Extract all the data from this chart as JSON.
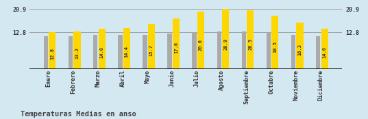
{
  "months": [
    "Enero",
    "Febrero",
    "Marzo",
    "Abril",
    "Mayo",
    "Junio",
    "Julio",
    "Agosto",
    "Septiembre",
    "Octubre",
    "Noviembre",
    "Diciembre"
  ],
  "values": [
    12.8,
    13.2,
    14.0,
    14.4,
    15.7,
    17.6,
    20.0,
    20.9,
    20.5,
    18.5,
    16.3,
    14.0
  ],
  "gray_values": [
    11.5,
    11.5,
    11.8,
    11.8,
    12.0,
    12.3,
    12.8,
    13.2,
    13.0,
    12.8,
    11.8,
    11.5
  ],
  "bar_color_yellow": "#FFD700",
  "bar_color_gray": "#AAAAAA",
  "background_color": "#D4E8F2",
  "ylim_min": 0,
  "ylim_max": 22.0,
  "yticks": [
    12.8,
    20.9
  ],
  "ytick_labels": [
    "12.8",
    "20.9"
  ],
  "hline_values": [
    12.8,
    20.9
  ],
  "title": "Temperaturas Medias en anso",
  "title_fontsize": 7.5,
  "value_fontsize": 5.0,
  "tick_fontsize": 6.0,
  "gray_bar_width": 0.18,
  "yellow_bar_width": 0.28
}
